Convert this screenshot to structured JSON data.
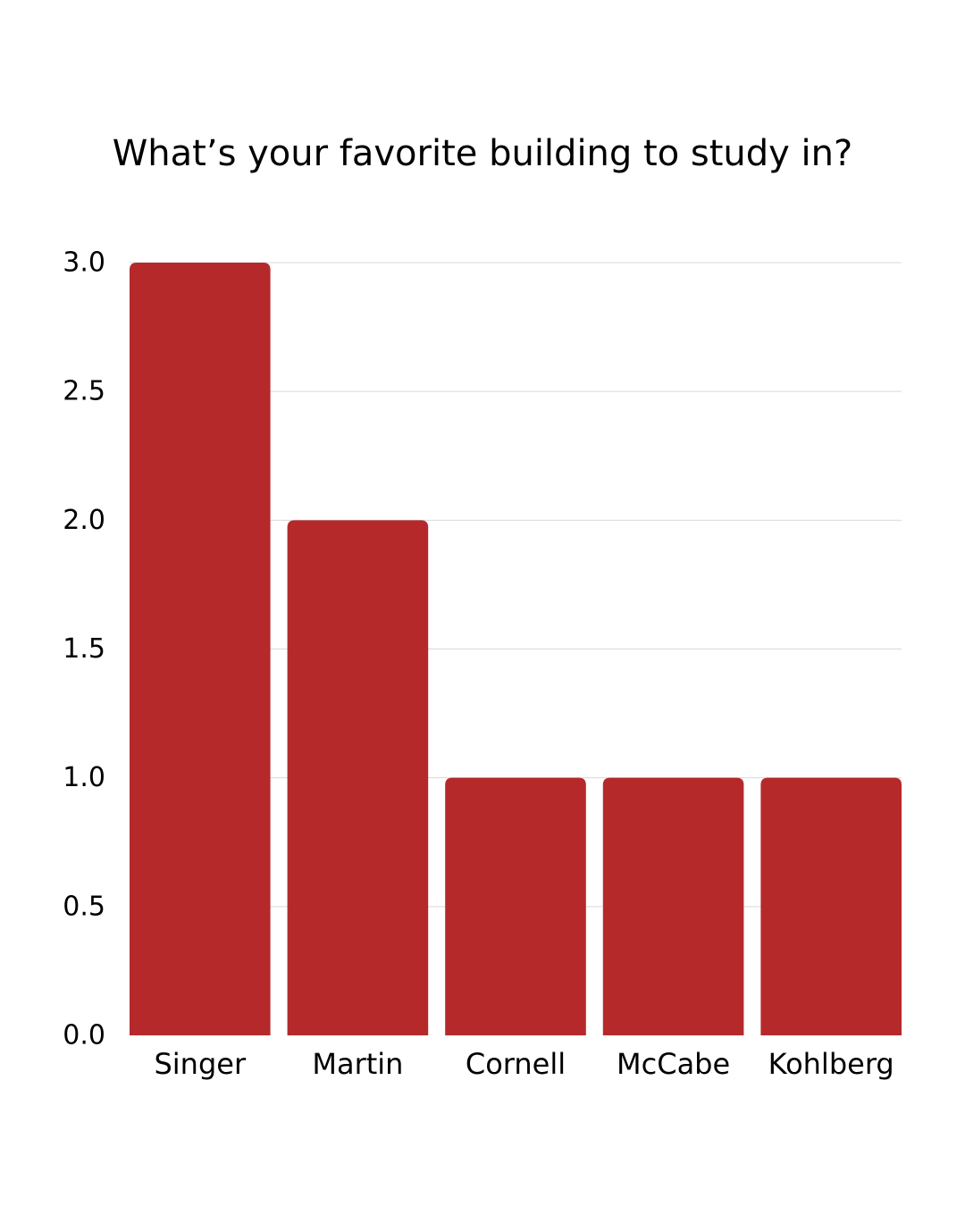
{
  "chart_data": {
    "type": "bar",
    "title": "What’s your favorite building to study in?",
    "categories": [
      "Singer",
      "Martin",
      "Cornell",
      "McCabe",
      "Kohlberg"
    ],
    "values": [
      3,
      2,
      1,
      1,
      1
    ],
    "ylim": [
      0,
      3
    ],
    "yticks": [
      "0.0",
      "0.5",
      "1.0",
      "1.5",
      "2.0",
      "2.5",
      "3.0"
    ],
    "xlabel": "",
    "ylabel": "",
    "grid": true,
    "legend": "none",
    "bar_color": "#b5292b",
    "grid_color": "#d9d9d9"
  }
}
